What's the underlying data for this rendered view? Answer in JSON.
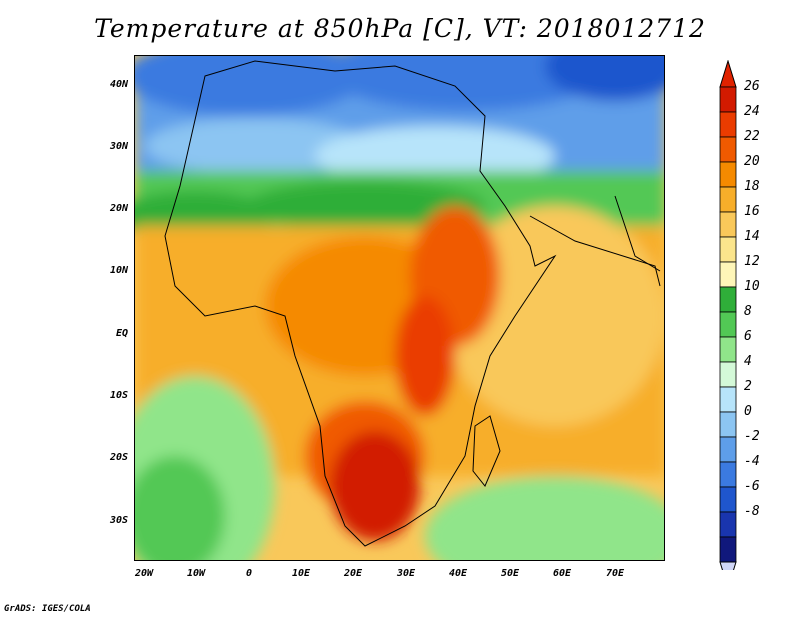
{
  "title": "Temperature at 850hPa [C], VT: 2018012712",
  "credit": "GrADS: IGES/COLA",
  "lat_ticks": [
    "40N",
    "30N",
    "20N",
    "10N",
    "EQ",
    "10S",
    "20S",
    "30S"
  ],
  "lon_ticks": [
    "20W",
    "10W",
    "0",
    "10E",
    "20E",
    "30E",
    "40E",
    "50E",
    "60E",
    "70E"
  ],
  "colorbar": {
    "labels": [
      "26",
      "24",
      "22",
      "20",
      "18",
      "16",
      "14",
      "12",
      "10",
      "8",
      "6",
      "4",
      "2",
      "0",
      "-2",
      "-4",
      "-6",
      "-8"
    ],
    "colors": [
      "#d21a00",
      "#ea3c00",
      "#f05a00",
      "#f58a00",
      "#f7ae2a",
      "#f9c85a",
      "#fbe58c",
      "#fef6b8",
      "#2fae39",
      "#52c855",
      "#90e58a",
      "#d4f9d8",
      "#b7e4fa",
      "#8cc5f2",
      "#5e9ee9",
      "#3b7ae0",
      "#1f56cd",
      "#1935ae",
      "#10187c"
    ],
    "overflow_high_color": "#e02200",
    "overflow_low_color": "#d0d6f7"
  }
}
